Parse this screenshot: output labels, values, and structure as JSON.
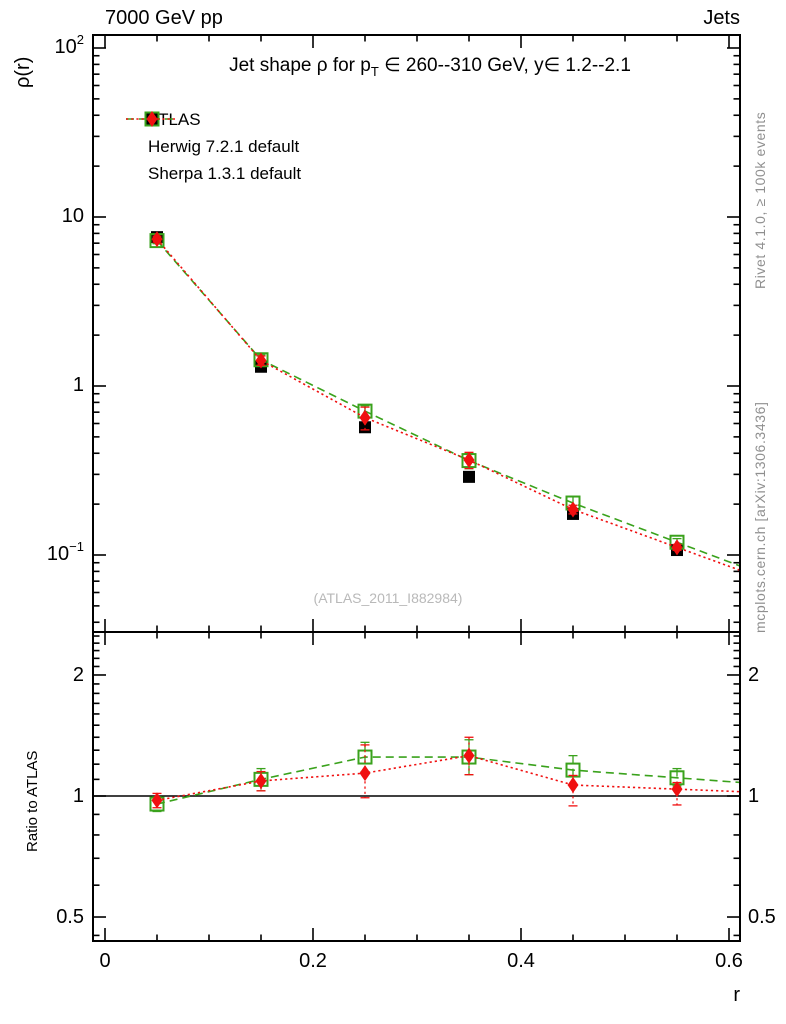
{
  "header": {
    "left": "7000 GeV pp",
    "right": "Jets"
  },
  "titles": {
    "plot_title_pre": "Jet shape ρ for p",
    "plot_title_sub": "T",
    "plot_title_post": " ∈ 260--310 GeV, y∈ 1.2--2.1"
  },
  "axes": {
    "main_y_title": "ρ(r)",
    "ratio_y_title": "Ratio to ATLAS",
    "x_title": "r",
    "x_ticks": [
      {
        "v": 0,
        "label": "0"
      },
      {
        "v": 0.2,
        "label": "0.2"
      },
      {
        "v": 0.4,
        "label": "0.4"
      },
      {
        "v": 0.6,
        "label": "0.6"
      }
    ],
    "main_y_ticks": [
      {
        "v": 100,
        "base": "10",
        "exp": "2"
      },
      {
        "v": 10,
        "base": "10",
        "exp": ""
      },
      {
        "v": 1,
        "base": "1",
        "exp": ""
      },
      {
        "v": 0.1,
        "base": "10",
        "exp": "−1"
      }
    ],
    "ratio_y_ticks": [
      {
        "v": 2,
        "label": "2"
      },
      {
        "v": 1,
        "label": "1"
      },
      {
        "v": 0.5,
        "label": "0.5"
      }
    ]
  },
  "watermark": "(ATLAS_2011_I882984)",
  "side_notes": {
    "right_top": "Rivet 4.1.0, ≥ 100k events",
    "right_bottom": "mcplots.cern.ch [arXiv:1306.3436]"
  },
  "colors": {
    "atlas": "#000000",
    "herwig": "#3aa21c",
    "sherpa": "#f01010",
    "note_gray": "#8f8f8f",
    "watermark_gray": "#b9b9b9"
  },
  "chart_data": {
    "type": "scatter",
    "title": "Jet shape ρ for p_T ∈ 260--310 GeV, y∈ 1.2--2.1",
    "xlabel": "r",
    "ylabel": "ρ(r)",
    "grid": false,
    "legend_position": "top-left-inside",
    "x": [
      0.05,
      0.15,
      0.25,
      0.35,
      0.45,
      0.55
    ],
    "xlim": [
      -0.012,
      0.611
    ],
    "main": {
      "ylog": true,
      "ylim": [
        0.035,
        119
      ],
      "series": [
        {
          "name": "ATLAS",
          "color": "#000000",
          "marker": "filled-square",
          "line": "none",
          "values": [
            7.6,
            1.3,
            0.57,
            0.29,
            0.175,
            0.107
          ],
          "err": [
            0.2,
            0.035,
            0.013,
            0.007,
            0.004,
            0.0025
          ]
        },
        {
          "name": "Herwig 7.2.1 default",
          "color": "#3aa21c",
          "marker": "open-square",
          "line": "dashed",
          "values": [
            7.25,
            1.43,
            0.71,
            0.362,
            0.203,
            0.119
          ],
          "err": [
            0.3,
            0.1,
            0.055,
            0.038,
            0.019,
            0.006
          ]
        },
        {
          "name": "Sherpa 1.3.1 default",
          "color": "#f01010",
          "marker": "filled-diamond",
          "line": "dotted",
          "values": [
            7.4,
            1.415,
            0.65,
            0.365,
            0.186,
            0.111
          ],
          "err": [
            0.3,
            0.09,
            0.1,
            0.04,
            0.011,
            0.0045
          ]
        }
      ]
    },
    "ratio": {
      "ylog": true,
      "ylim": [
        0.436,
        2.56
      ],
      "baseline": 1,
      "series": [
        {
          "name": "Herwig 7.2.1 default",
          "color": "#3aa21c",
          "marker": "open-square",
          "line": "dashed",
          "values": [
            0.955,
            1.1,
            1.25,
            1.25,
            1.16,
            1.11
          ],
          "err_up": [
            0.04,
            0.07,
            0.11,
            0.13,
            0.1,
            0.06
          ],
          "err_dn": [
            0.04,
            0.07,
            0.1,
            0.12,
            0.09,
            0.05
          ]
        },
        {
          "name": "Sherpa 1.3.1 default",
          "color": "#f01010",
          "marker": "filled-diamond",
          "line": "dotted",
          "values": [
            0.975,
            1.09,
            1.14,
            1.26,
            1.065,
            1.04
          ],
          "err_up": [
            0.04,
            0.06,
            0.2,
            0.14,
            0.06,
            0.04
          ],
          "err_dn": [
            0.04,
            0.06,
            0.15,
            0.13,
            0.12,
            0.09
          ]
        }
      ]
    }
  }
}
